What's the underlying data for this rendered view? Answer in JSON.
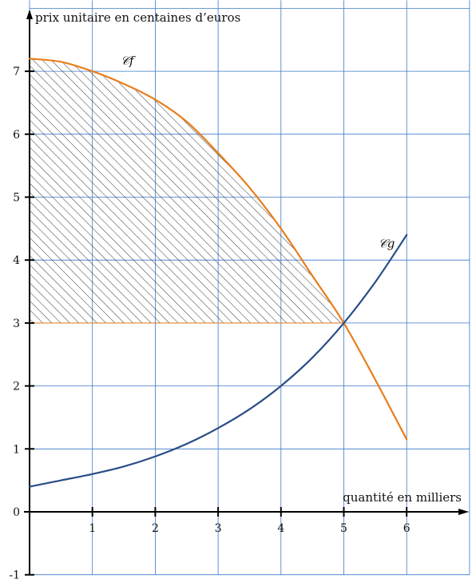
{
  "chart_data": {
    "type": "line",
    "title": "",
    "xlabel": "quantité en milliers",
    "ylabel": "prix unitaire en centaines d’euros",
    "xlim": [
      0,
      7
    ],
    "ylim": [
      -1,
      8
    ],
    "x_ticks": [
      "1",
      "2",
      "3",
      "4",
      "5",
      "6"
    ],
    "y_ticks": [
      "-1",
      "0",
      "1",
      "2",
      "3",
      "4",
      "5",
      "6",
      "7"
    ],
    "grid": true,
    "series": [
      {
        "name": "𝒞f",
        "color": "#e87e1c",
        "x": [
          0,
          0.5,
          1,
          1.5,
          2,
          2.5,
          3,
          3.5,
          4,
          4.5,
          5,
          5.5,
          6
        ],
        "y": [
          7.2,
          7.15,
          7.0,
          6.8,
          6.55,
          6.2,
          5.7,
          5.15,
          4.5,
          3.75,
          3.0,
          2.1,
          1.15
        ]
      },
      {
        "name": "𝒞g",
        "color": "#2a4d87",
        "x": [
          0,
          0.5,
          1,
          1.5,
          2,
          2.5,
          3,
          3.5,
          4,
          4.5,
          5,
          5.5,
          6
        ],
        "y": [
          0.4,
          0.5,
          0.6,
          0.72,
          0.88,
          1.08,
          1.33,
          1.63,
          2.0,
          2.45,
          3.0,
          3.65,
          4.4
        ]
      }
    ],
    "shaded_region": {
      "between": "𝒞f and y = 3",
      "x_range": [
        0,
        5
      ],
      "pattern": "hatched"
    },
    "annotations": [
      {
        "text": "𝒞f",
        "near": "f",
        "x": 1.45,
        "y": 7.1
      },
      {
        "text": "𝒞g",
        "near": "g",
        "x": 5.55,
        "y": 4.2
      }
    ]
  }
}
